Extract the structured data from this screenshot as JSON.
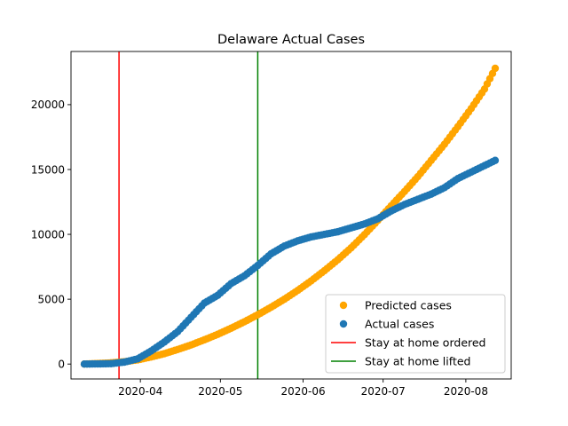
{
  "chart_data": {
    "type": "scatter",
    "title": "Delaware Actual Cases",
    "xlabel": "",
    "ylabel": "",
    "x_axis_type": "date",
    "xlim": [
      "2020-03-06",
      "2020-08-18"
    ],
    "ylim": [
      -1150,
      24100
    ],
    "x_ticks": [
      "2020-04-01",
      "2020-05-01",
      "2020-06-01",
      "2020-07-01",
      "2020-08-01"
    ],
    "x_tick_labels": [
      "2020-04",
      "2020-05",
      "2020-06",
      "2020-07",
      "2020-08"
    ],
    "y_ticks": [
      0,
      5000,
      10000,
      15000,
      20000
    ],
    "y_tick_labels": [
      "0",
      "5000",
      "10000",
      "15000",
      "20000"
    ],
    "grid": false,
    "legend_position": "lower-right",
    "series": [
      {
        "name": "Predicted cases",
        "color": "#ffa500",
        "marker": "circle",
        "x": [
          "2020-03-11",
          "2020-03-16",
          "2020-03-21",
          "2020-03-26",
          "2020-03-31",
          "2020-04-05",
          "2020-04-10",
          "2020-04-15",
          "2020-04-20",
          "2020-04-25",
          "2020-04-30",
          "2020-05-05",
          "2020-05-10",
          "2020-05-15",
          "2020-05-20",
          "2020-05-25",
          "2020-05-30",
          "2020-06-04",
          "2020-06-09",
          "2020-06-14",
          "2020-06-19",
          "2020-06-24",
          "2020-06-29",
          "2020-07-04",
          "2020-07-09",
          "2020-07-14",
          "2020-07-19",
          "2020-07-24",
          "2020-07-29",
          "2020-08-03",
          "2020-08-08",
          "2020-08-12"
        ],
        "y": [
          0,
          40,
          90,
          180,
          320,
          540,
          800,
          1120,
          1470,
          1870,
          2290,
          2760,
          3260,
          3800,
          4380,
          5000,
          5680,
          6410,
          7200,
          8040,
          8960,
          9980,
          11070,
          12200,
          13300,
          14450,
          15700,
          16950,
          18300,
          19700,
          21200,
          22800
        ]
      },
      {
        "name": "Actual cases",
        "color": "#1f77b4",
        "marker": "circle",
        "x": [
          "2020-03-11",
          "2020-03-16",
          "2020-03-21",
          "2020-03-26",
          "2020-03-31",
          "2020-04-05",
          "2020-04-10",
          "2020-04-15",
          "2020-04-20",
          "2020-04-25",
          "2020-04-30",
          "2020-05-05",
          "2020-05-10",
          "2020-05-15",
          "2020-05-20",
          "2020-05-25",
          "2020-05-30",
          "2020-06-04",
          "2020-06-09",
          "2020-06-14",
          "2020-06-19",
          "2020-06-24",
          "2020-06-29",
          "2020-07-04",
          "2020-07-09",
          "2020-07-14",
          "2020-07-19",
          "2020-07-24",
          "2020-07-29",
          "2020-08-03",
          "2020-08-08",
          "2020-08-12"
        ],
        "y": [
          0,
          10,
          30,
          150,
          400,
          1000,
          1700,
          2500,
          3600,
          4700,
          5300,
          6200,
          6800,
          7600,
          8500,
          9100,
          9500,
          9800,
          10000,
          10200,
          10500,
          10800,
          11200,
          11800,
          12300,
          12700,
          13100,
          13600,
          14300,
          14800,
          15300,
          15700
        ]
      }
    ],
    "vlines": [
      {
        "name": "Stay at home ordered",
        "x": "2020-03-24",
        "color": "#ff0000"
      },
      {
        "name": "Stay at home lifted",
        "x": "2020-05-15",
        "color": "#008000"
      }
    ],
    "legend": [
      {
        "label": "Predicted cases",
        "kind": "marker",
        "color": "#ffa500"
      },
      {
        "label": "Actual cases",
        "kind": "marker",
        "color": "#1f77b4"
      },
      {
        "label": "Stay at home ordered",
        "kind": "line",
        "color": "#ff0000"
      },
      {
        "label": "Stay at home lifted",
        "kind": "line",
        "color": "#008000"
      }
    ]
  }
}
